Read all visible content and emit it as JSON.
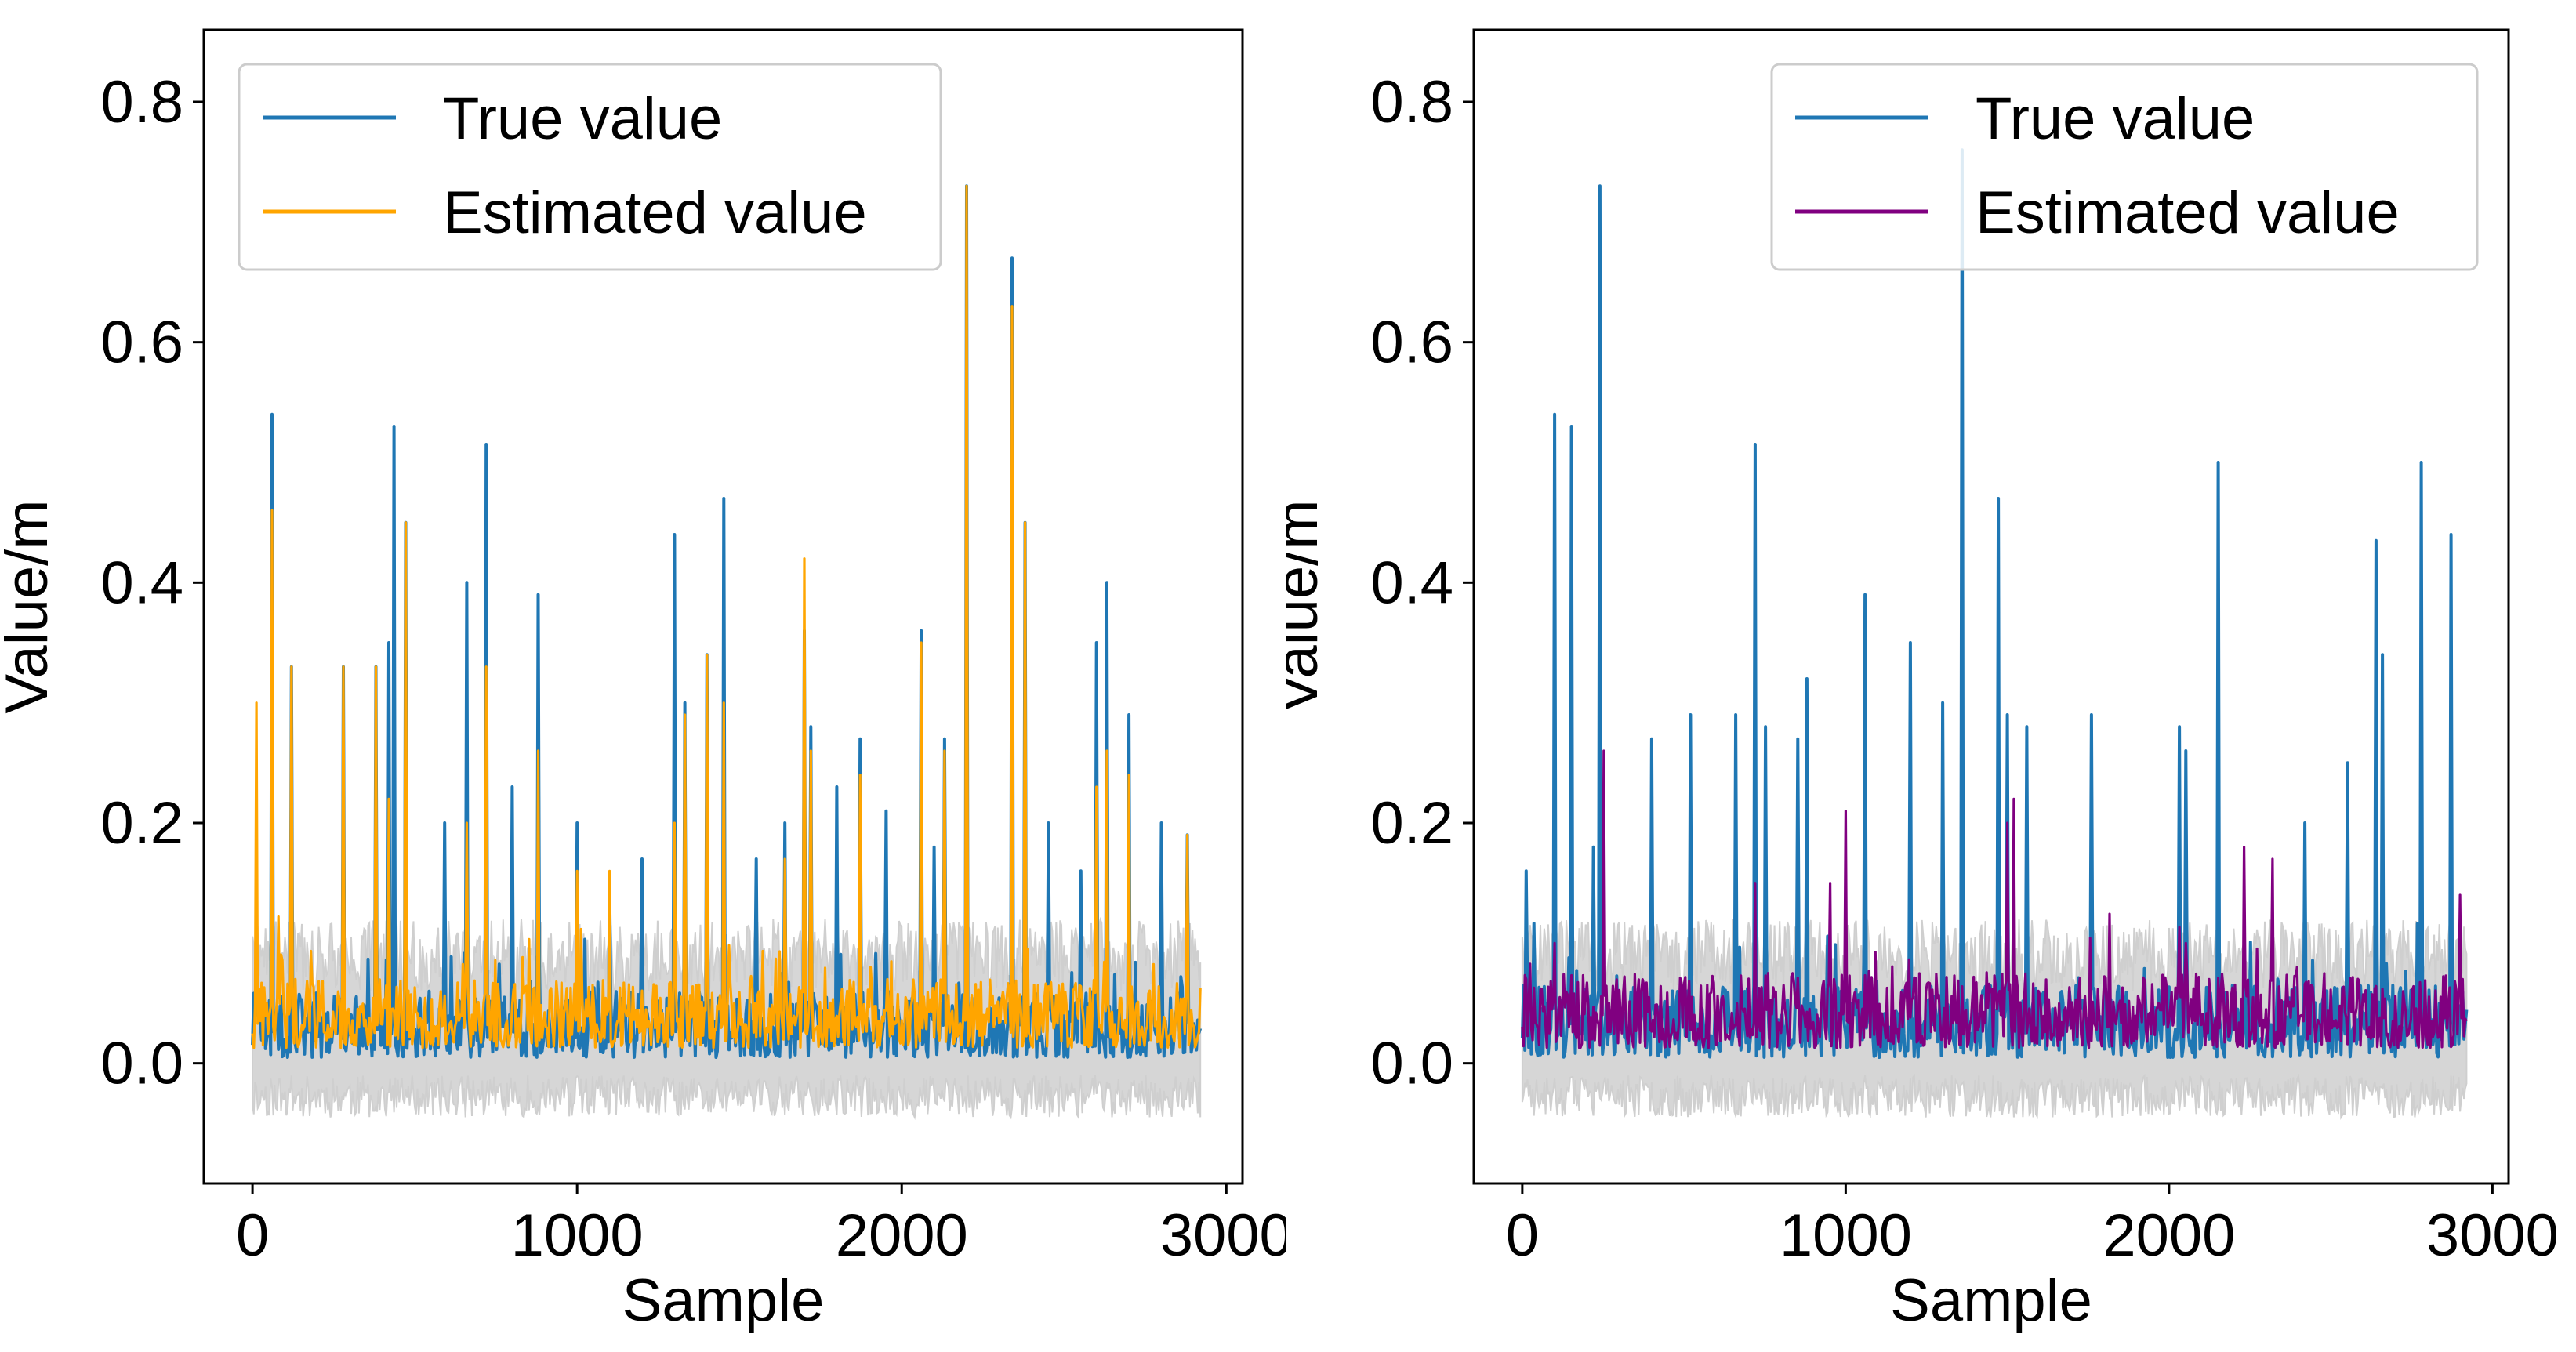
{
  "colors": {
    "true_value": "#1f77b4",
    "band": "#cfcfcf",
    "left_estimated": "#ffa500",
    "right_estimated": "#800080"
  },
  "chart_data": [
    {
      "type": "line",
      "panel": "left",
      "title": "",
      "xlabel": "Sample",
      "ylabel": "Value/m",
      "xlim": [
        -150,
        3050
      ],
      "ylim": [
        -0.1,
        0.86
      ],
      "xticks": [
        0,
        1000,
        2000,
        3000
      ],
      "xtick_labels": [
        "0",
        "1000",
        "2000",
        "3000"
      ],
      "yticks": [
        0.0,
        0.2,
        0.4,
        0.6,
        0.8
      ],
      "ytick_labels": [
        "0.0",
        "0.2",
        "0.4",
        "0.6",
        "0.8"
      ],
      "legend_position": "upper-left",
      "legend": [
        "True value",
        "Estimated value"
      ],
      "n_samples": 2920,
      "baseline": {
        "low": 0.005,
        "high": 0.06,
        "band_low": -0.045,
        "band_high": 0.12
      },
      "series": [
        {
          "name": "True value",
          "color": "#1f77b4",
          "peaks": [
            [
              10,
              0.07
            ],
            [
              60,
              0.54
            ],
            [
              120,
              0.33
            ],
            [
              280,
              0.33
            ],
            [
              380,
              0.33
            ],
            [
              420,
              0.35
            ],
            [
              435,
              0.53
            ],
            [
              470,
              0.45
            ],
            [
              590,
              0.2
            ],
            [
              660,
              0.4
            ],
            [
              720,
              0.515
            ],
            [
              800,
              0.23
            ],
            [
              880,
              0.39
            ],
            [
              1000,
              0.2
            ],
            [
              1100,
              0.15
            ],
            [
              1200,
              0.17
            ],
            [
              1300,
              0.44
            ],
            [
              1330,
              0.3
            ],
            [
              1400,
              0.34
            ],
            [
              1450,
              0.47
            ],
            [
              1550,
              0.17
            ],
            [
              1640,
              0.2
            ],
            [
              1700,
              0.36
            ],
            [
              1720,
              0.28
            ],
            [
              1800,
              0.23
            ],
            [
              1870,
              0.27
            ],
            [
              1950,
              0.21
            ],
            [
              2060,
              0.36
            ],
            [
              2100,
              0.18
            ],
            [
              2130,
              0.27
            ],
            [
              2200,
              0.73
            ],
            [
              2340,
              0.67
            ],
            [
              2380,
              0.45
            ],
            [
              2450,
              0.2
            ],
            [
              2550,
              0.16
            ],
            [
              2600,
              0.35
            ],
            [
              2630,
              0.4
            ],
            [
              2700,
              0.29
            ],
            [
              2800,
              0.2
            ],
            [
              2880,
              0.19
            ]
          ]
        },
        {
          "name": "Estimated value",
          "color": "#ffa500",
          "peaks": [
            [
              10,
              0.3
            ],
            [
              60,
              0.46
            ],
            [
              120,
              0.33
            ],
            [
              280,
              0.33
            ],
            [
              380,
              0.33
            ],
            [
              420,
              0.22
            ],
            [
              470,
              0.45
            ],
            [
              660,
              0.2
            ],
            [
              720,
              0.33
            ],
            [
              880,
              0.26
            ],
            [
              1000,
              0.16
            ],
            [
              1100,
              0.16
            ],
            [
              1300,
              0.2
            ],
            [
              1330,
              0.29
            ],
            [
              1400,
              0.34
            ],
            [
              1450,
              0.3
            ],
            [
              1640,
              0.17
            ],
            [
              1700,
              0.42
            ],
            [
              1720,
              0.26
            ],
            [
              1870,
              0.24
            ],
            [
              2060,
              0.35
            ],
            [
              2130,
              0.26
            ],
            [
              2200,
              0.73
            ],
            [
              2340,
              0.63
            ],
            [
              2380,
              0.45
            ],
            [
              2600,
              0.23
            ],
            [
              2630,
              0.26
            ],
            [
              2700,
              0.24
            ],
            [
              2880,
              0.19
            ]
          ]
        }
      ]
    },
    {
      "type": "line",
      "panel": "right",
      "title": "",
      "xlabel": "Sample",
      "ylabel": "Value/m",
      "xlim": [
        -150,
        3050
      ],
      "ylim": [
        -0.1,
        0.86
      ],
      "xticks": [
        0,
        1000,
        2000,
        3000
      ],
      "xtick_labels": [
        "0",
        "1000",
        "2000",
        "3000"
      ],
      "yticks": [
        0.0,
        0.2,
        0.4,
        0.6,
        0.8
      ],
      "ytick_labels": [
        "0.0",
        "0.2",
        "0.4",
        "0.6",
        "0.8"
      ],
      "legend_position": "upper-right",
      "legend": [
        "True value",
        "Estimated value"
      ],
      "n_samples": 2920,
      "baseline": {
        "low": 0.005,
        "high": 0.065,
        "band_low": -0.045,
        "band_high": 0.12
      },
      "series": [
        {
          "name": "True value",
          "color": "#1f77b4",
          "peaks": [
            [
              10,
              0.16
            ],
            [
              100,
              0.54
            ],
            [
              150,
              0.53
            ],
            [
              220,
              0.18
            ],
            [
              240,
              0.73
            ],
            [
              400,
              0.27
            ],
            [
              520,
              0.29
            ],
            [
              660,
              0.29
            ],
            [
              720,
              0.515
            ],
            [
              750,
              0.28
            ],
            [
              850,
              0.27
            ],
            [
              880,
              0.32
            ],
            [
              1060,
              0.39
            ],
            [
              1200,
              0.35
            ],
            [
              1300,
              0.3
            ],
            [
              1360,
              0.76
            ],
            [
              1470,
              0.47
            ],
            [
              1500,
              0.29
            ],
            [
              1560,
              0.28
            ],
            [
              1760,
              0.29
            ],
            [
              2030,
              0.28
            ],
            [
              2050,
              0.26
            ],
            [
              2150,
              0.5
            ],
            [
              2420,
              0.2
            ],
            [
              2550,
              0.25
            ],
            [
              2640,
              0.435
            ],
            [
              2660,
              0.34
            ],
            [
              2780,
              0.5
            ],
            [
              2870,
              0.44
            ]
          ]
        },
        {
          "name": "Estimated value",
          "color": "#800080",
          "peaks": [
            [
              10,
              0.07
            ],
            [
              100,
              0.1
            ],
            [
              250,
              0.26
            ],
            [
              720,
              0.15
            ],
            [
              950,
              0.15
            ],
            [
              1000,
              0.21
            ],
            [
              1500,
              0.2
            ],
            [
              1520,
              0.22
            ],
            [
              2050,
              0.1
            ],
            [
              2230,
              0.18
            ],
            [
              2320,
              0.17
            ],
            [
              2900,
              0.14
            ]
          ]
        }
      ]
    }
  ]
}
